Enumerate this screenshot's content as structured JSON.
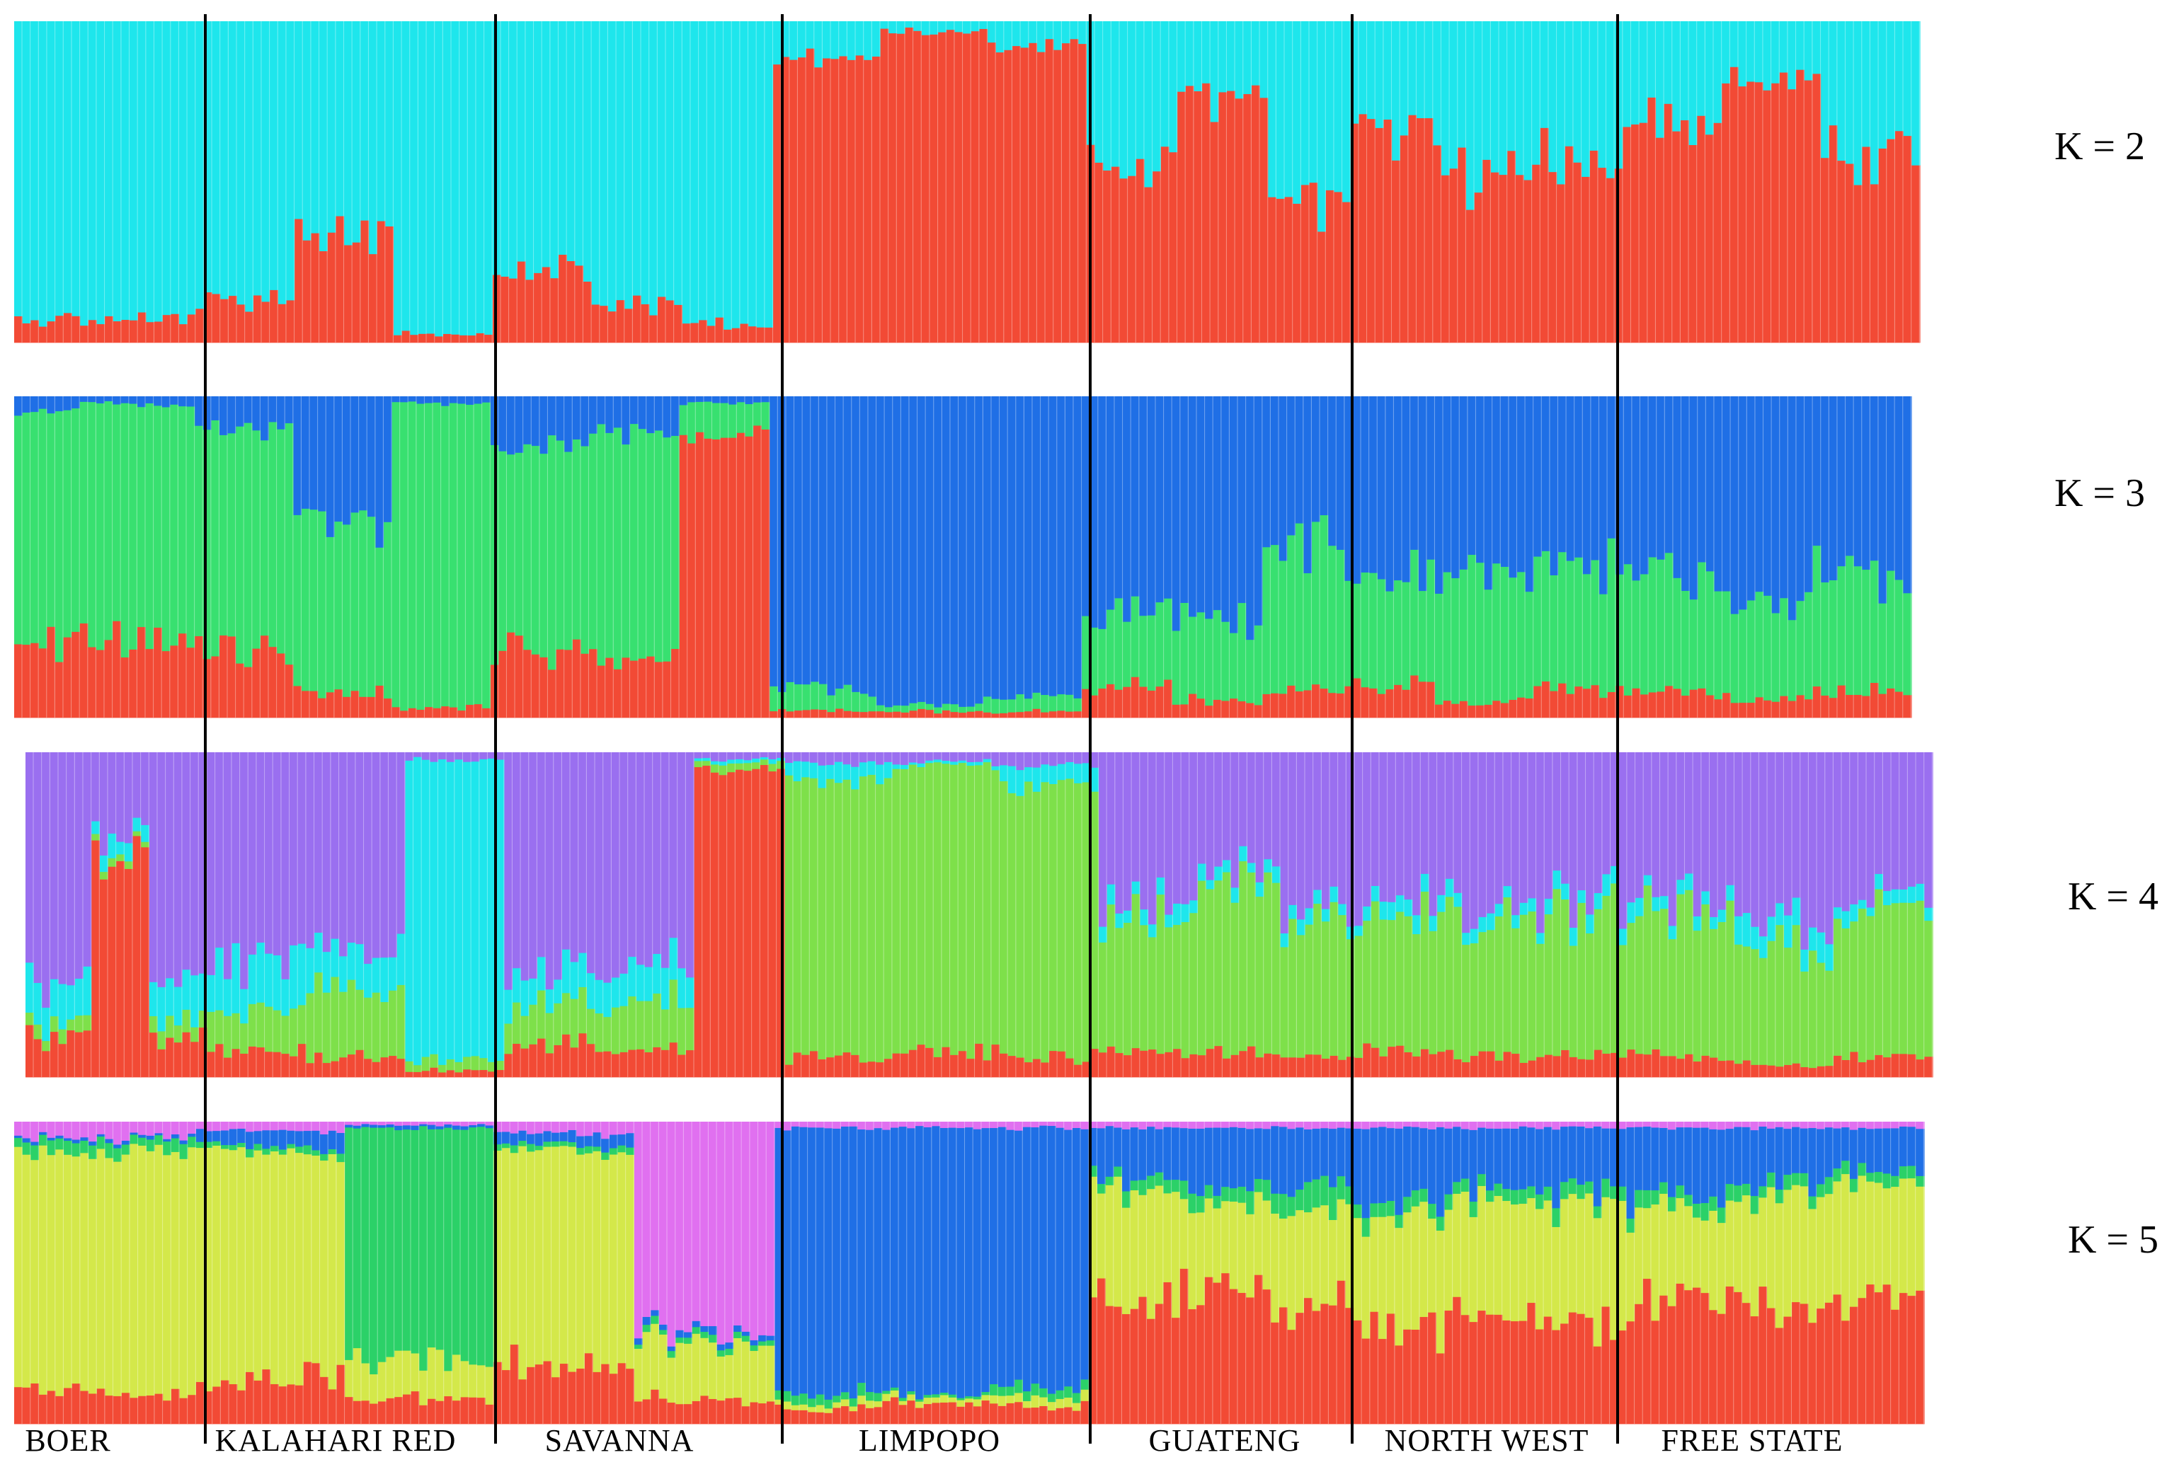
{
  "chart_data": {
    "type": "bar",
    "stacked": true,
    "description_kind": "admixture structure plot",
    "populations": [
      {
        "name": "BOER",
        "n": 22
      },
      {
        "name": "KALAHARI RED",
        "n": 36
      },
      {
        "name": "SAVANNA",
        "n": 34
      },
      {
        "name": "LIMPOPO",
        "n": 38
      },
      {
        "name": "GUATENG",
        "n": 32
      },
      {
        "name": "NORTH WEST",
        "n": 33
      },
      {
        "name": "FREE STATE",
        "n": 36
      }
    ],
    "panels": [
      {
        "label": "K = 2",
        "colors": [
          "#f24a35",
          "#1ee6ec"
        ],
        "profiles": [
          [
            [
              0.07,
              0.93
            ]
          ],
          [
            [
              0.12,
              0.88
            ],
            [
              0.35,
              0.65
            ],
            [
              0.03,
              0.97
            ]
          ],
          [
            [
              0.22,
              0.78
            ],
            [
              0.12,
              0.88
            ],
            [
              0.06,
              0.94
            ]
          ],
          [
            [
              0.88,
              0.12
            ],
            [
              0.97,
              0.03
            ],
            [
              0.93,
              0.07
            ]
          ],
          [
            [
              0.55,
              0.45
            ],
            [
              0.78,
              0.22
            ],
            [
              0.45,
              0.55
            ]
          ],
          [
            [
              0.65,
              0.35
            ],
            [
              0.52,
              0.48
            ],
            [
              0.58,
              0.42
            ]
          ],
          [
            [
              0.68,
              0.32
            ],
            [
              0.82,
              0.18
            ],
            [
              0.58,
              0.42
            ]
          ]
        ]
      },
      {
        "label": "K = 3",
        "colors": [
          "#f24a35",
          "#38e070",
          "#1f6fe6"
        ],
        "profiles": [
          [
            [
              0.25,
              0.7,
              0.05
            ],
            [
              0.22,
              0.76,
              0.02
            ],
            [
              0.25,
              0.72,
              0.03
            ]
          ],
          [
            [
              0.2,
              0.7,
              0.1
            ],
            [
              0.08,
              0.55,
              0.37
            ],
            [
              0.03,
              0.95,
              0.02
            ]
          ],
          [
            [
              0.2,
              0.65,
              0.15
            ],
            [
              0.18,
              0.72,
              0.1
            ],
            [
              0.88,
              0.1,
              0.02
            ]
          ],
          [
            [
              0.02,
              0.06,
              0.92
            ],
            [
              0.02,
              0.02,
              0.96
            ],
            [
              0.02,
              0.05,
              0.93
            ]
          ],
          [
            [
              0.1,
              0.22,
              0.68
            ],
            [
              0.05,
              0.25,
              0.7
            ],
            [
              0.08,
              0.45,
              0.47
            ]
          ],
          [
            [
              0.1,
              0.35,
              0.55
            ],
            [
              0.05,
              0.4,
              0.55
            ],
            [
              0.08,
              0.38,
              0.54
            ]
          ],
          [
            [
              0.08,
              0.35,
              0.57
            ],
            [
              0.06,
              0.3,
              0.64
            ],
            [
              0.08,
              0.35,
              0.57
            ]
          ]
        ]
      },
      {
        "label": "K = 4",
        "colors": [
          "#f24a35",
          "#7ee04a",
          "#1ee6ec",
          "#9a6ff0"
        ],
        "profiles": [
          [
            [
              0.12,
              0.04,
              0.12,
              0.72
            ],
            [
              0.7,
              0.02,
              0.05,
              0.23
            ],
            [
              0.12,
              0.05,
              0.12,
              0.71
            ]
          ],
          [
            [
              0.08,
              0.12,
              0.15,
              0.65
            ],
            [
              0.06,
              0.2,
              0.12,
              0.62
            ],
            [
              0.02,
              0.03,
              0.93,
              0.02
            ]
          ],
          [
            [
              0.1,
              0.12,
              0.1,
              0.68
            ],
            [
              0.08,
              0.15,
              0.12,
              0.65
            ],
            [
              0.95,
              0.02,
              0.01,
              0.02
            ]
          ],
          [
            [
              0.06,
              0.86,
              0.05,
              0.03
            ],
            [
              0.08,
              0.88,
              0.01,
              0.03
            ],
            [
              0.06,
              0.84,
              0.06,
              0.04
            ]
          ],
          [
            [
              0.08,
              0.4,
              0.05,
              0.47
            ],
            [
              0.08,
              0.5,
              0.04,
              0.38
            ],
            [
              0.06,
              0.4,
              0.04,
              0.5
            ]
          ],
          [
            [
              0.08,
              0.45,
              0.05,
              0.42
            ],
            [
              0.06,
              0.42,
              0.04,
              0.48
            ],
            [
              0.07,
              0.43,
              0.05,
              0.45
            ]
          ],
          [
            [
              0.06,
              0.42,
              0.04,
              0.48
            ],
            [
              0.04,
              0.35,
              0.08,
              0.53
            ],
            [
              0.06,
              0.45,
              0.04,
              0.45
            ]
          ]
        ]
      },
      {
        "label": "K = 5",
        "colors": [
          "#f24a35",
          "#d4e84a",
          "#2bd168",
          "#1f6fe6",
          "#e070f0"
        ],
        "profiles": [
          [
            [
              0.1,
              0.8,
              0.04,
              0.01,
              0.05
            ]
          ],
          [
            [
              0.15,
              0.75,
              0.02,
              0.05,
              0.03
            ],
            [
              0.08,
              0.12,
              0.78,
              0.01,
              0.01
            ]
          ],
          [
            [
              0.2,
              0.7,
              0.02,
              0.04,
              0.04
            ],
            [
              0.08,
              0.2,
              0.02,
              0.02,
              0.68
            ]
          ],
          [
            [
              0.05,
              0.02,
              0.03,
              0.88,
              0.02
            ],
            [
              0.07,
              0.02,
              0.01,
              0.88,
              0.02
            ],
            [
              0.06,
              0.03,
              0.03,
              0.86,
              0.02
            ]
          ],
          [
            [
              0.4,
              0.38,
              0.04,
              0.16,
              0.02
            ],
            [
              0.45,
              0.28,
              0.05,
              0.2,
              0.02
            ],
            [
              0.38,
              0.32,
              0.08,
              0.2,
              0.02
            ]
          ],
          [
            [
              0.32,
              0.35,
              0.05,
              0.26,
              0.02
            ],
            [
              0.38,
              0.35,
              0.04,
              0.21,
              0.02
            ],
            [
              0.34,
              0.37,
              0.05,
              0.22,
              0.02
            ]
          ],
          [
            [
              0.4,
              0.3,
              0.05,
              0.23,
              0.02
            ],
            [
              0.4,
              0.35,
              0.05,
              0.18,
              0.02
            ],
            [
              0.42,
              0.38,
              0.04,
              0.14,
              0.02
            ]
          ]
        ]
      }
    ]
  }
}
